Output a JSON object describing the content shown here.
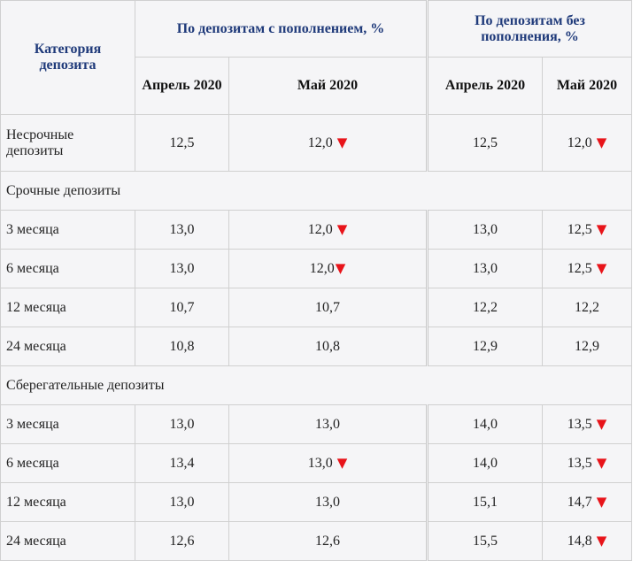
{
  "header": {
    "category": "Категория депозита",
    "with_topup": "По депозитам с пополнением, %",
    "without_topup": "По депозитам без пополнения, %",
    "april": "Апрель 2020",
    "may": "Май 2020"
  },
  "indicator": {
    "down_glyph": "▼",
    "down_color": "#e8141a"
  },
  "colors": {
    "header_text": "#1f3a7a",
    "cell_bg": "#f5f5f7",
    "border": "#d0d0d0"
  },
  "rows": [
    {
      "category": "Несрочные депозиты",
      "with_apr": "12,5",
      "with_may": "12,0",
      "with_may_down": true,
      "without_apr": "12,5",
      "without_may": "12,0",
      "without_may_down": true
    }
  ],
  "sections": [
    {
      "title": "Срочные депозиты",
      "rows": [
        {
          "category": "3 месяца",
          "with_apr": "13,0",
          "with_may": "12,0",
          "with_may_down": true,
          "without_apr": "13,0",
          "without_may": "12,5",
          "without_may_down": true
        },
        {
          "category": "6 месяца",
          "with_apr": "13,0",
          "with_may": "12,0",
          "with_may_down": true,
          "without_apr": "13,0",
          "without_may": "12,5",
          "without_may_down": true
        },
        {
          "category": "12 месяца",
          "with_apr": "10,7",
          "with_may": "10,7",
          "with_may_down": false,
          "without_apr": "12,2",
          "without_may": "12,2",
          "without_may_down": false
        },
        {
          "category": "24 месяца",
          "with_apr": "10,8",
          "with_may": "10,8",
          "with_may_down": false,
          "without_apr": "12,9",
          "without_may": "12,9",
          "without_may_down": false
        }
      ]
    },
    {
      "title": "Сберегательные депозиты",
      "rows": [
        {
          "category": "3 месяца",
          "with_apr": "13,0",
          "with_may": "13,0",
          "with_may_down": false,
          "without_apr": "14,0",
          "without_may": "13,5",
          "without_may_down": true
        },
        {
          "category": "6 месяца",
          "with_apr": "13,4",
          "with_may": "13,0",
          "with_may_down": true,
          "without_apr": "14,0",
          "without_may": "13,5",
          "without_may_down": true
        },
        {
          "category": "12 месяца",
          "with_apr": "13,0",
          "with_may": "13,0",
          "with_may_down": false,
          "without_apr": "15,1",
          "without_may": "14,7",
          "without_may_down": true
        },
        {
          "category": "24 месяца",
          "with_apr": "12,6",
          "with_may": "12,6",
          "with_may_down": false,
          "without_apr": "15,5",
          "without_may": "14,8",
          "without_may_down": true
        }
      ]
    }
  ]
}
